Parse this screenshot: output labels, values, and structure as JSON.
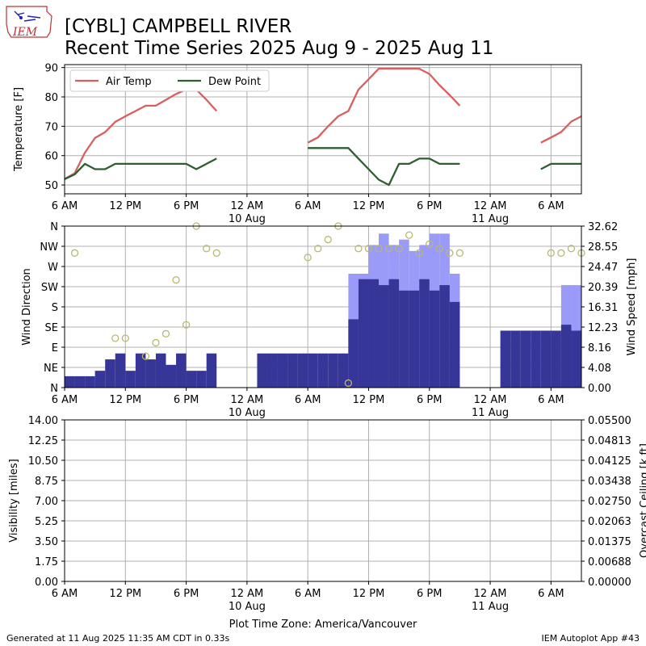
{
  "header": {
    "title_line1": "[CYBL] CAMPBELL RIVER",
    "title_line2": "Recent Time Series 2025 Aug 9 - 2025 Aug 11"
  },
  "logo": {
    "text": "IEM"
  },
  "footer": {
    "left": "Generated at 11 Aug 2025 11:35 AM CDT in 0.33s",
    "right": "IEM Autoplot App #43",
    "timezone_label": "Plot Time Zone: America/Vancouver"
  },
  "colors": {
    "air_temp": "#d95f5f",
    "dew_point": "#2e5e2e",
    "gust_bar": "#9a9af8",
    "speed_bar": "#363698",
    "direction_marker": "#b8b870",
    "ceiling_axis": "#008000"
  },
  "x_axis": {
    "domain_hours": [
      0,
      51
    ],
    "ticks": [
      {
        "h": 0,
        "label": "6 AM",
        "sub": ""
      },
      {
        "h": 6,
        "label": "12 PM",
        "sub": ""
      },
      {
        "h": 12,
        "label": "6 PM",
        "sub": ""
      },
      {
        "h": 18,
        "label": "12 AM",
        "sub": "10 Aug"
      },
      {
        "h": 24,
        "label": "6 AM",
        "sub": ""
      },
      {
        "h": 30,
        "label": "12 PM",
        "sub": ""
      },
      {
        "h": 36,
        "label": "6 PM",
        "sub": ""
      },
      {
        "h": 42,
        "label": "12 AM",
        "sub": "11 Aug"
      },
      {
        "h": 48,
        "label": "6 AM",
        "sub": ""
      }
    ]
  },
  "chart_data": [
    {
      "type": "line",
      "title": "",
      "ylabel": "Temperature [F]",
      "ylim": [
        47,
        91
      ],
      "yticks": [
        50,
        60,
        70,
        80,
        90
      ],
      "grid": true,
      "legend_position": "top-left",
      "series": [
        {
          "name": "Air Temp",
          "points": [
            [
              0,
              52
            ],
            [
              1,
              54
            ],
            [
              2,
              61
            ],
            [
              3,
              66
            ],
            [
              4,
              68
            ],
            [
              5,
              71.5
            ],
            [
              6,
              73.4
            ],
            [
              7,
              75.2
            ],
            [
              8,
              77
            ],
            [
              9,
              77
            ],
            [
              10,
              79
            ],
            [
              11,
              81
            ],
            [
              12,
              82.5
            ],
            [
              13,
              82.5
            ],
            [
              14,
              79
            ],
            [
              15,
              75.2
            ],
            [
              24,
              64.4
            ],
            [
              25,
              66.2
            ],
            [
              26,
              70
            ],
            [
              27,
              73.4
            ],
            [
              28,
              75.2
            ],
            [
              29,
              82.5
            ],
            [
              30,
              86
            ],
            [
              31,
              89.6
            ],
            [
              32,
              89.6
            ],
            [
              33,
              89.6
            ],
            [
              34,
              89.6
            ],
            [
              35,
              89.6
            ],
            [
              36,
              87.8
            ],
            [
              37,
              84
            ],
            [
              38,
              80.6
            ],
            [
              39,
              77
            ],
            [
              47,
              64.4
            ],
            [
              48,
              66.2
            ],
            [
              49,
              68
            ],
            [
              50,
              71.6
            ],
            [
              51,
              73.4
            ]
          ]
        },
        {
          "name": "Dew Point",
          "points": [
            [
              0,
              52
            ],
            [
              1,
              53.6
            ],
            [
              2,
              57.2
            ],
            [
              3,
              55.4
            ],
            [
              4,
              55.4
            ],
            [
              5,
              57.2
            ],
            [
              6,
              57.2
            ],
            [
              7,
              57.2
            ],
            [
              8,
              57.2
            ],
            [
              9,
              57.2
            ],
            [
              10,
              57.2
            ],
            [
              11,
              57.2
            ],
            [
              12,
              57.2
            ],
            [
              13,
              55.4
            ],
            [
              14,
              57.2
            ],
            [
              15,
              59
            ],
            [
              24,
              62.6
            ],
            [
              25,
              62.6
            ],
            [
              26,
              62.6
            ],
            [
              27,
              62.6
            ],
            [
              28,
              62.6
            ],
            [
              29,
              59
            ],
            [
              30,
              55.4
            ],
            [
              31,
              51.8
            ],
            [
              32,
              50
            ],
            [
              33,
              57.2
            ],
            [
              34,
              57.2
            ],
            [
              35,
              59
            ],
            [
              36,
              59
            ],
            [
              37,
              57.2
            ],
            [
              38,
              57.2
            ],
            [
              39,
              57.2
            ],
            [
              47,
              55.4
            ],
            [
              48,
              57.2
            ],
            [
              49,
              57.2
            ],
            [
              50,
              57.2
            ],
            [
              51,
              57.2
            ]
          ]
        }
      ]
    },
    {
      "type": "bar",
      "title": "",
      "ylabel_left": "Wind Direction",
      "ylabel_right": "Wind Speed [mph]",
      "ylim_speed": [
        0,
        32.62
      ],
      "ylim_direction": [
        0,
        360
      ],
      "yticks_left": [
        "N",
        "NE",
        "E",
        "SE",
        "S",
        "SW",
        "W",
        "NW",
        "N"
      ],
      "yticks_right": [
        "0.00",
        "4.08",
        "8.16",
        "12.23",
        "16.31",
        "20.39",
        "24.47",
        "28.55",
        "32.62"
      ],
      "grid": true,
      "series": [
        {
          "name": "Wind Speed",
          "points": [
            [
              0.5,
              2.3
            ],
            [
              1.5,
              2.3
            ],
            [
              2.5,
              2.3
            ],
            [
              3.5,
              3.4
            ],
            [
              4.5,
              5.7
            ],
            [
              5.5,
              6.9
            ],
            [
              6.5,
              3.4
            ],
            [
              7.5,
              6.9
            ],
            [
              8.5,
              5.7
            ],
            [
              9.5,
              6.9
            ],
            [
              10.5,
              4.6
            ],
            [
              11.5,
              6.9
            ],
            [
              12.5,
              3.4
            ],
            [
              13.5,
              3.4
            ],
            [
              14.5,
              6.9
            ],
            [
              19.5,
              6.9
            ],
            [
              20.5,
              6.9
            ],
            [
              21.5,
              6.9
            ],
            [
              22.5,
              6.9
            ],
            [
              23.5,
              6.9
            ],
            [
              24.5,
              6.9
            ],
            [
              25.5,
              6.9
            ],
            [
              26.5,
              6.9
            ],
            [
              27.5,
              6.9
            ],
            [
              28.5,
              13.8
            ],
            [
              29.5,
              21.9
            ],
            [
              30.5,
              21.9
            ],
            [
              31.5,
              20.7
            ],
            [
              32.5,
              21.9
            ],
            [
              33.5,
              19.6
            ],
            [
              34.5,
              19.6
            ],
            [
              35.5,
              21.9
            ],
            [
              36.5,
              19.6
            ],
            [
              37.5,
              20.7
            ],
            [
              38.5,
              17.3
            ],
            [
              43.5,
              11.5
            ],
            [
              44.5,
              11.5
            ],
            [
              45.5,
              11.5
            ],
            [
              46.5,
              11.5
            ],
            [
              47.5,
              11.5
            ],
            [
              48.5,
              11.5
            ],
            [
              49.5,
              12.7
            ],
            [
              50.5,
              11.5
            ]
          ]
        },
        {
          "name": "Wind Gust",
          "points": [
            [
              28.5,
              23
            ],
            [
              29.5,
              23
            ],
            [
              30.5,
              28.8
            ],
            [
              31.5,
              31.1
            ],
            [
              32.5,
              28.8
            ],
            [
              33.5,
              29.9
            ],
            [
              34.5,
              27.6
            ],
            [
              35.5,
              28.8
            ],
            [
              36.5,
              31.1
            ],
            [
              37.5,
              31.1
            ],
            [
              38.5,
              23
            ],
            [
              49.5,
              20.7
            ],
            [
              50.5,
              20.7
            ]
          ]
        },
        {
          "name": "Wind Direction",
          "type": "scatter",
          "points": [
            [
              1,
              300
            ],
            [
              5,
              110
            ],
            [
              6,
              110
            ],
            [
              8,
              70
            ],
            [
              9,
              100
            ],
            [
              10,
              120
            ],
            [
              11,
              240
            ],
            [
              12,
              140
            ],
            [
              13,
              360
            ],
            [
              14,
              310
            ],
            [
              15,
              300
            ],
            [
              24,
              290
            ],
            [
              25,
              310
            ],
            [
              26,
              330
            ],
            [
              27,
              360
            ],
            [
              28,
              10
            ],
            [
              29,
              310
            ],
            [
              30,
              310
            ],
            [
              31,
              310
            ],
            [
              32,
              310
            ],
            [
              33,
              310
            ],
            [
              34,
              340
            ],
            [
              35,
              300
            ],
            [
              36,
              320
            ],
            [
              37,
              310
            ],
            [
              38,
              300
            ],
            [
              39,
              300
            ],
            [
              48,
              300
            ],
            [
              49,
              300
            ],
            [
              50,
              310
            ],
            [
              51,
              300
            ]
          ]
        }
      ]
    },
    {
      "type": "line",
      "title": "",
      "ylabel_left": "Visibility [miles]",
      "ylabel_right": "Overcast Ceiling [k ft]",
      "ylim_left": [
        0,
        14
      ],
      "ylim_right": [
        0,
        0.055
      ],
      "yticks_left": [
        "0.00",
        "1.75",
        "3.50",
        "5.25",
        "7.00",
        "8.75",
        "10.50",
        "12.25",
        "14.00"
      ],
      "yticks_right": [
        "0.00000",
        "0.00688",
        "0.01375",
        "0.02063",
        "0.02750",
        "0.03438",
        "0.04125",
        "0.04813",
        "0.05500"
      ],
      "grid": true,
      "series": []
    }
  ]
}
